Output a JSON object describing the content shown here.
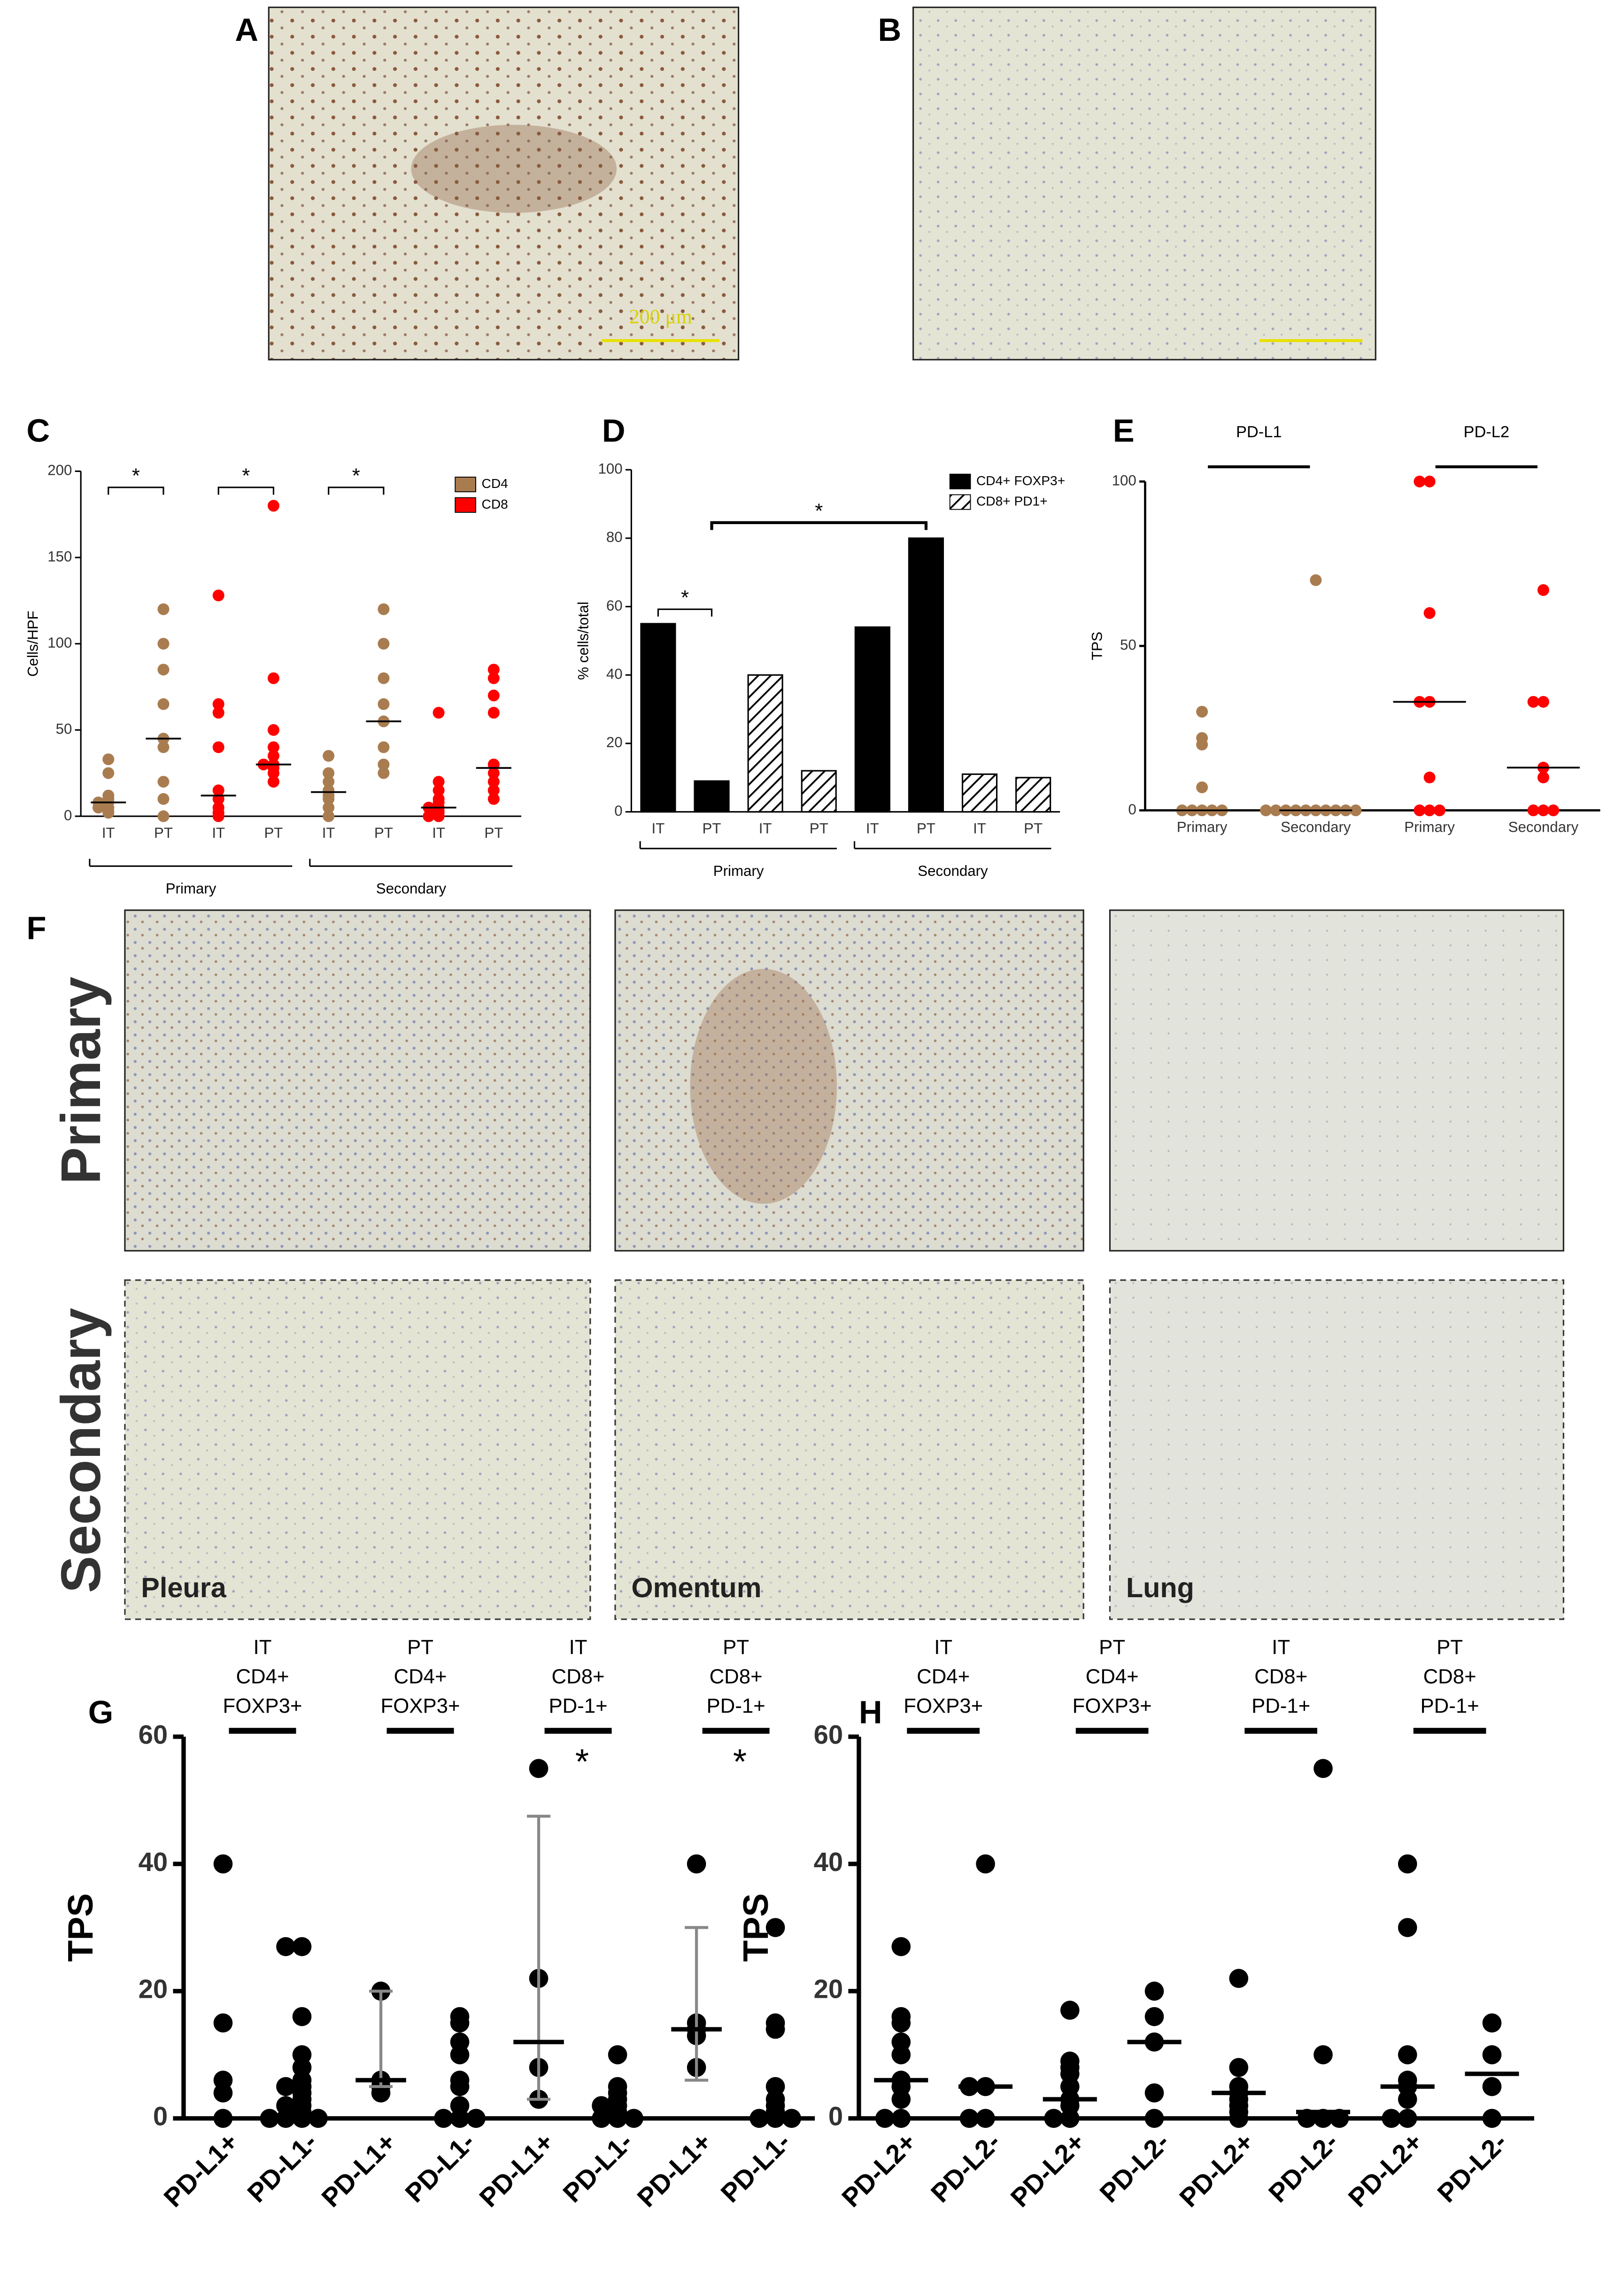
{
  "figure": {
    "panel_labels": [
      "A",
      "B",
      "C",
      "D",
      "E",
      "F",
      "G",
      "H"
    ],
    "scale_bar": "200 μm",
    "rows": [
      "Primary",
      "Secondary"
    ],
    "sites": [
      "Pleura",
      "Omentum",
      "Lung"
    ]
  },
  "chart_data": [
    {
      "type": "strip",
      "ylabel": "Cells/HPF",
      "categories": [
        "IT",
        "PT",
        "IT",
        "PT",
        "IT",
        "PT",
        "IT",
        "PT"
      ],
      "groups": [
        "Primary",
        "Secondary"
      ],
      "series": [
        {
          "name": "CD4",
          "color": "#a97c50",
          "values": [
            [
              33,
              25,
              12,
              10,
              8,
              8,
              5,
              5,
              3,
              2
            ],
            [
              120,
              100,
              85,
              65,
              45,
              40,
              20,
              10,
              0
            ],
            null,
            null,
            [
              35,
              25,
              20,
              15,
              12,
              10,
              5,
              0
            ],
            [
              120,
              100,
              80,
              65,
              55,
              40,
              30,
              25
            ],
            null,
            null
          ],
          "medians": [
            8,
            45,
            null,
            null,
            14,
            55,
            null,
            null
          ]
        },
        {
          "name": "CD8",
          "color": "#ff0000",
          "values": [
            null,
            null,
            [
              128,
              65,
              60,
              40,
              15,
              10,
              5,
              2,
              0
            ],
            [
              180,
              80,
              50,
              40,
              35,
              30,
              30,
              28,
              25,
              20
            ],
            null,
            null,
            [
              60,
              20,
              15,
              10,
              8,
              5,
              5,
              3,
              2,
              0,
              0
            ],
            [
              85,
              80,
              70,
              60,
              30,
              25,
              20,
              15,
              10
            ]
          ],
          "medians": [
            null,
            null,
            12,
            30,
            null,
            null,
            5,
            28
          ]
        }
      ],
      "ylim": [
        0,
        200
      ],
      "yticks": [
        0,
        50,
        100,
        150,
        200
      ],
      "significance": [
        "*",
        "*",
        "*"
      ]
    },
    {
      "type": "bar",
      "ylabel": "% cells/total",
      "categories": [
        "IT",
        "PT",
        "IT",
        "PT",
        "IT",
        "PT",
        "IT",
        "PT"
      ],
      "groups": [
        "Primary",
        "Secondary"
      ],
      "series": [
        {
          "name": "CD4+ FOXP3+",
          "color": "#000000",
          "values": [
            55,
            9,
            null,
            null,
            54,
            80,
            null,
            null
          ]
        },
        {
          "name": "CD8+ PD1+",
          "color": "#000000",
          "pattern": "hatch",
          "values": [
            null,
            null,
            40,
            12,
            null,
            null,
            11,
            10
          ]
        }
      ],
      "ylim": [
        0,
        100
      ],
      "yticks": [
        0,
        20,
        40,
        60,
        80,
        100
      ],
      "significance": [
        "*",
        "*"
      ]
    },
    {
      "type": "strip",
      "ylabel": "TPS",
      "categories": [
        "Primary",
        "Secondary",
        "Primary",
        "Secondary"
      ],
      "headers": [
        "PD-L1",
        "PD-L2"
      ],
      "series": [
        {
          "name": "PD-L1",
          "color": "#a97c50",
          "values": [
            [
              30,
              22,
              20,
              7,
              0,
              0,
              0,
              0,
              0
            ],
            [
              70,
              0,
              0,
              0,
              0,
              0,
              0,
              0,
              0,
              0,
              0
            ],
            null,
            null
          ],
          "medians": [
            0,
            0,
            null,
            null
          ]
        },
        {
          "name": "PD-L2",
          "color": "#ff0000",
          "values": [
            null,
            null,
            [
              100,
              100,
              60,
              33,
              33,
              10,
              0,
              0,
              0
            ],
            [
              67,
              33,
              33,
              13,
              10,
              0,
              0,
              0
            ]
          ],
          "medians": [
            null,
            null,
            33,
            13
          ]
        }
      ],
      "ylim": [
        0,
        100
      ],
      "yticks": [
        0,
        50,
        100
      ]
    },
    {
      "type": "strip",
      "ylabel": "TPS",
      "categories": [
        "PD-L1+",
        "PD-L1-",
        "PD-L1+",
        "PD-L1-",
        "PD-L1+",
        "PD-L1-",
        "PD-L1+",
        "PD-L1-"
      ],
      "headers": [
        [
          "IT",
          "CD4+",
          "FOXP3+"
        ],
        [
          "PT",
          "CD4+",
          "FOXP3+"
        ],
        [
          "IT",
          "CD8+",
          "PD-1+"
        ],
        [
          "PT",
          "CD8+",
          "PD-1+"
        ]
      ],
      "color": "#000000",
      "values": [
        [
          40,
          15,
          6,
          4,
          0
        ],
        [
          27,
          27,
          16,
          10,
          8,
          6,
          5,
          5,
          4,
          3,
          2,
          2,
          1,
          0,
          0,
          0,
          0
        ],
        [
          20,
          6,
          5,
          4
        ],
        [
          16,
          15,
          12,
          10,
          6,
          5,
          2,
          0,
          0,
          0
        ],
        [
          55,
          22,
          8,
          3
        ],
        [
          10,
          5,
          4,
          3,
          2,
          2,
          1,
          0,
          0,
          0
        ],
        [
          40,
          15,
          14,
          13,
          8
        ],
        [
          30,
          15,
          14,
          5,
          3,
          2,
          1,
          0,
          0,
          0
        ]
      ],
      "medians": [
        null,
        null,
        6,
        null,
        12,
        null,
        14,
        null
      ],
      "errors": [
        null,
        null,
        [
          5,
          20
        ],
        null,
        [
          3,
          47.5
        ],
        null,
        [
          6,
          30
        ],
        null
      ],
      "ylim": [
        0,
        60
      ],
      "yticks": [
        0,
        20,
        40,
        60
      ],
      "significance": [
        "*",
        "*"
      ]
    },
    {
      "type": "strip",
      "ylabel": "TPS",
      "categories": [
        "PD-L2+",
        "PD-L2-",
        "PD-L2+",
        "PD-L2-",
        "PD-L2+",
        "PD-L2-",
        "PD-L2+",
        "PD-L2-"
      ],
      "headers": [
        [
          "IT",
          "CD4+",
          "FOXP3+"
        ],
        [
          "PT",
          "CD4+",
          "FOXP3+"
        ],
        [
          "IT",
          "CD8+",
          "PD-1+"
        ],
        [
          "PT",
          "CD8+",
          "PD-1+"
        ]
      ],
      "color": "#000000",
      "values": [
        [
          27,
          16,
          15,
          12,
          10,
          6,
          5,
          3,
          0,
          0
        ],
        [
          40,
          5,
          5,
          0,
          0
        ],
        [
          17,
          9,
          8,
          7,
          5,
          3,
          2,
          0,
          0
        ],
        [
          20,
          16,
          12,
          4,
          0
        ],
        [
          22,
          8,
          5,
          4,
          3,
          2,
          1,
          0
        ],
        [
          55,
          10,
          0,
          0,
          0
        ],
        [
          40,
          30,
          10,
          6,
          5,
          3,
          0,
          0
        ],
        [
          15,
          10,
          5,
          0
        ]
      ],
      "medians": [
        6,
        5,
        3,
        12,
        4,
        1,
        5,
        7
      ],
      "ylim": [
        0,
        60
      ],
      "yticks": [
        0,
        20,
        40,
        60
      ]
    }
  ]
}
